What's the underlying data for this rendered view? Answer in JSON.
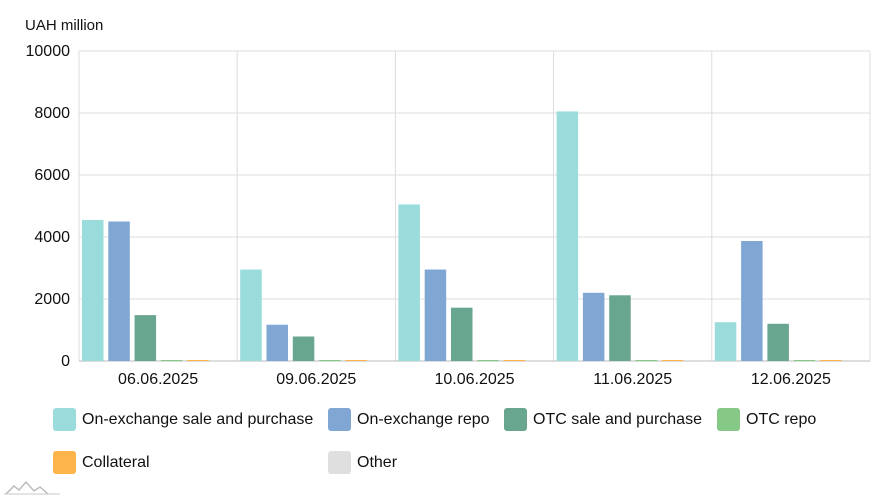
{
  "chart_data": {
    "type": "bar",
    "ylabel": "UAH million",
    "ylim": [
      0,
      10000
    ],
    "yticks": [
      0,
      2000,
      4000,
      6000,
      8000,
      10000
    ],
    "categories": [
      "06.06.2025",
      "09.06.2025",
      "10.06.2025",
      "11.06.2025",
      "12.06.2025"
    ],
    "series": [
      {
        "name": "On-exchange sale and purchase",
        "color": "#99dcdb",
        "values": [
          4550,
          2950,
          5050,
          8050,
          1250
        ]
      },
      {
        "name": "On-exchange repo",
        "color": "#80a6d4",
        "values": [
          4500,
          1170,
          2950,
          2200,
          3870
        ]
      },
      {
        "name": "OTC sale and purchase",
        "color": "#68a68f",
        "values": [
          1480,
          790,
          1720,
          2120,
          1200
        ]
      },
      {
        "name": "OTC repo",
        "color": "#86c986",
        "values": [
          0,
          0,
          0,
          0,
          0
        ]
      },
      {
        "name": "Collateral",
        "color": "#fdb44b",
        "values": [
          0,
          0,
          0,
          0,
          0
        ]
      },
      {
        "name": "Other",
        "color": "#dfdfdf",
        "values": [
          0,
          0,
          0,
          0,
          0
        ]
      }
    ],
    "grid": true,
    "legend": "bottom"
  }
}
